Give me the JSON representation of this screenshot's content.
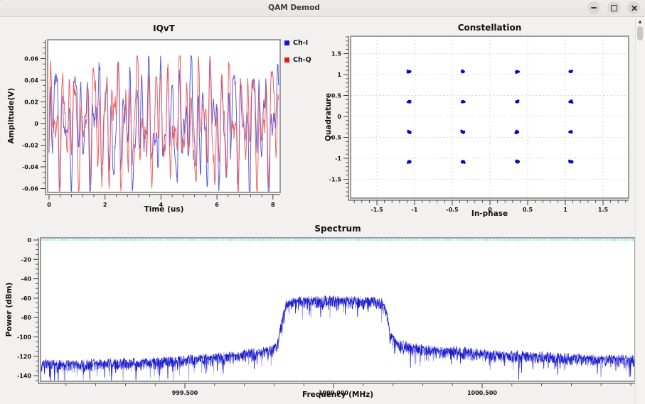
{
  "window": {
    "title": "QAM Demod",
    "controls": [
      {
        "name": "minimize"
      },
      {
        "name": "maximize"
      },
      {
        "name": "close"
      }
    ]
  },
  "scrollbar": {
    "orientation": "vertical",
    "position": "top"
  },
  "chart_data": [
    {
      "id": "iqvt",
      "type": "line",
      "title": "IQvT",
      "xlabel": "Time (us)",
      "ylabel": "Amplitude(V)",
      "xlim": [
        0,
        8.25
      ],
      "ylim": [
        -0.064,
        0.0775
      ],
      "xticks": {
        "values": [
          0,
          2,
          4,
          6,
          8
        ],
        "labels": [
          "0",
          "2",
          "4",
          "6",
          "8"
        ],
        "minor_step": 0.4
      },
      "yticks": {
        "values": [
          0.06,
          0.04,
          0.02,
          0,
          -0.02,
          -0.04,
          -0.06
        ],
        "labels": [
          "0.06",
          "0.04",
          "0.02",
          "0",
          "-0.02",
          "-0.04",
          "-0.06"
        ],
        "minor_step": 0.005
      },
      "grid": false,
      "legend": {
        "position": "outside-top-right"
      },
      "series": [
        {
          "name": "Ch-I",
          "color": "#1414e0",
          "line_color": "#5b5bdf",
          "waveform": "random-baseband",
          "amplitude_peak_v": 0.062,
          "duration_us": 8.2
        },
        {
          "name": "Ch-Q",
          "color": "#ee1414",
          "line_color": "#ee6060",
          "waveform": "random-baseband",
          "amplitude_peak_v": 0.062,
          "duration_us": 8.2
        }
      ]
    },
    {
      "id": "constellation",
      "type": "scatter",
      "title": "Constellation",
      "xlabel": "In-phase",
      "ylabel": "Quadrature",
      "xlim": [
        -1.85,
        1.84
      ],
      "ylim": [
        -1.95,
        1.92
      ],
      "xticks": {
        "values": [
          -1.5,
          -1,
          -0.5,
          0,
          0.5,
          1,
          1.5
        ],
        "labels": [
          "-1.5",
          "-1",
          "-0.5",
          "0",
          "0.5",
          "1",
          "1.5"
        ],
        "minor_step": 0.1
      },
      "yticks": {
        "values": [
          1.5,
          1,
          0.5,
          0,
          -0.5,
          -1,
          -1.5
        ],
        "labels": [
          "1.5",
          "1",
          "0.5",
          "0",
          "-0.5",
          "-1",
          "-1.5"
        ],
        "minor_step": 0.1
      },
      "grid": true,
      "point_color": "#000bc8",
      "cluster_spread": 0.05,
      "symbol_centers": [
        [
          -1.07,
          1.07
        ],
        [
          -0.36,
          1.07
        ],
        [
          0.36,
          1.07
        ],
        [
          1.07,
          1.07
        ],
        [
          -1.07,
          0.35
        ],
        [
          -0.36,
          0.35
        ],
        [
          0.36,
          0.35
        ],
        [
          1.07,
          0.35
        ],
        [
          -1.07,
          -0.37
        ],
        [
          -0.36,
          -0.37
        ],
        [
          0.36,
          -0.37
        ],
        [
          1.07,
          -0.37
        ],
        [
          -1.07,
          -1.08
        ],
        [
          -0.36,
          -1.08
        ],
        [
          0.36,
          -1.08
        ],
        [
          1.07,
          -1.08
        ]
      ]
    },
    {
      "id": "spectrum",
      "type": "line",
      "title": "Spectrum",
      "xlabel": "Frequency (MHz)",
      "ylabel": "Power (dBm)",
      "xlim": [
        999.014,
        1001.014
      ],
      "ylim": [
        -146,
        2
      ],
      "xticks": {
        "values": [
          999.5,
          1000.0,
          1000.5
        ],
        "labels": [
          "999.500",
          "1000.000",
          "1000.500"
        ],
        "minor_step": 0.1
      },
      "yticks": {
        "values": [
          0,
          -20,
          -40,
          -60,
          -80,
          -100,
          -120,
          -140
        ],
        "labels": [
          "0",
          "-20",
          "-40",
          "-60",
          "-80",
          "-100",
          "-120",
          "-140"
        ],
        "minor_step": 5
      },
      "grid": false,
      "reference_line": {
        "level_dbm": 0,
        "color": "#00c2c8",
        "style": "dotted"
      },
      "trace_color": "#1c1ccd",
      "trace_color_light": "#9a9ae8",
      "noise_db": 9,
      "envelope_dbm": [
        [
          999.01,
          -126
        ],
        [
          999.2,
          -125
        ],
        [
          999.4,
          -123
        ],
        [
          999.55,
          -120
        ],
        [
          999.68,
          -116
        ],
        [
          999.78,
          -112
        ],
        [
          999.81,
          -107
        ],
        [
          999.825,
          -82
        ],
        [
          999.84,
          -64
        ],
        [
          999.86,
          -61
        ],
        [
          999.9,
          -60
        ],
        [
          1000.0,
          -59.5
        ],
        [
          1000.1,
          -60
        ],
        [
          1000.14,
          -61
        ],
        [
          1000.165,
          -63
        ],
        [
          1000.178,
          -72
        ],
        [
          1000.19,
          -95
        ],
        [
          1000.21,
          -104
        ],
        [
          1000.28,
          -109
        ],
        [
          1000.4,
          -112
        ],
        [
          1000.55,
          -115
        ],
        [
          1000.75,
          -118
        ],
        [
          1000.9,
          -120
        ],
        [
          1001.01,
          -121
        ]
      ]
    }
  ]
}
